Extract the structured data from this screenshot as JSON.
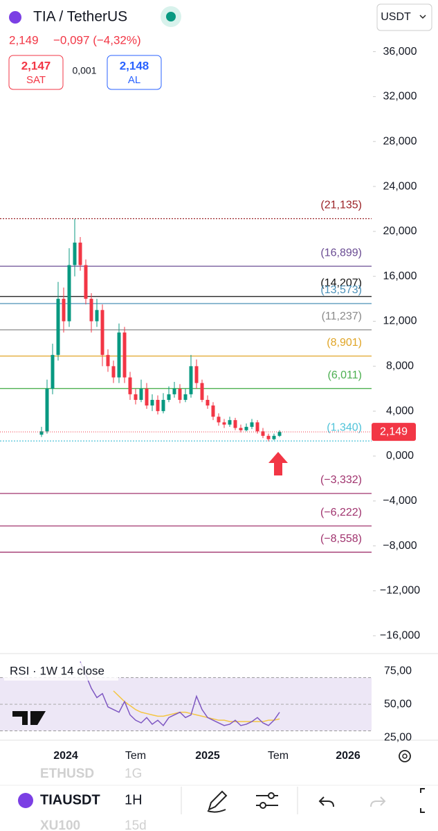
{
  "header": {
    "symbol": "TIA / TetherUS",
    "price": "2,149",
    "change": "−0,097 (−4,32%)",
    "sell": {
      "price": "2,147",
      "label": "SAT"
    },
    "spread": "0,001",
    "buy": {
      "price": "2,148",
      "label": "AL"
    },
    "currency": "USDT"
  },
  "price_chart": {
    "type": "candlestick",
    "up_color": "#089981",
    "down_color": "#f23645",
    "open": [
      1.9,
      2.2,
      6,
      9,
      14,
      12,
      17,
      19,
      17,
      14,
      12,
      13,
      9,
      8,
      7,
      11,
      7,
      5.5,
      5,
      6,
      4.5,
      5,
      4,
      5,
      5.5,
      6,
      5,
      5.5,
      8,
      6.5,
      5,
      4.5,
      3.5,
      3,
      2.8,
      3.2,
      2.5,
      2.3,
      2.6,
      3,
      2.2,
      1.8,
      1.5,
      1.8
    ],
    "high": [
      2.6,
      6.8,
      10,
      15.5,
      15,
      18.5,
      21.1,
      19.5,
      17.5,
      14.5,
      14,
      13.5,
      9.5,
      8.5,
      11.8,
      11.5,
      7.5,
      6,
      6.8,
      6.5,
      5.5,
      5.4,
      5.6,
      6.2,
      6.6,
      6.4,
      6,
      9,
      8.6,
      6.8,
      5.4,
      4.8,
      3.8,
      3.3,
      3.5,
      3.4,
      2.8,
      2.9,
      3.3,
      3.2,
      2.5,
      2,
      2,
      2.3
    ],
    "low": [
      1.7,
      2,
      5.5,
      8.5,
      11,
      11.5,
      16,
      16.5,
      13.5,
      11,
      11.5,
      8,
      7.5,
      6.5,
      6.5,
      6.5,
      5,
      4.6,
      4.8,
      4.2,
      4,
      3.7,
      3.8,
      4.8,
      5.2,
      4.7,
      4.8,
      5.2,
      6,
      4.8,
      4.2,
      3.2,
      2.7,
      2.5,
      2.6,
      2.3,
      2.1,
      2.2,
      2.4,
      2,
      1.6,
      1.3,
      1.4,
      1.7
    ],
    "close": [
      2.2,
      6,
      9,
      14,
      12,
      17,
      19,
      17,
      14,
      12,
      13,
      9,
      8,
      7,
      11,
      7,
      5.5,
      5,
      6,
      4.5,
      5,
      4,
      5,
      5.5,
      6,
      5,
      5.5,
      8,
      6.5,
      5,
      4.5,
      3.5,
      3,
      2.8,
      3.2,
      2.5,
      2.3,
      2.6,
      3,
      2.2,
      1.8,
      1.5,
      1.8,
      2.149
    ],
    "ylim": [
      -17.4,
      40.6
    ],
    "yticks": [
      {
        "value": 36,
        "label": "36,000"
      },
      {
        "value": 32,
        "label": "32,000"
      },
      {
        "value": 28,
        "label": "28,000"
      },
      {
        "value": 24,
        "label": "24,000"
      },
      {
        "value": 20,
        "label": "20,000"
      },
      {
        "value": 16,
        "label": "16,000"
      },
      {
        "value": 12,
        "label": "12,000"
      },
      {
        "value": 8,
        "label": "8,000"
      },
      {
        "value": 4,
        "label": "4,000"
      },
      {
        "value": 0,
        "label": "0,000"
      },
      {
        "value": -4,
        "label": "−4,000"
      },
      {
        "value": -8,
        "label": "−8,000"
      },
      {
        "value": -12,
        "label": "−12,000"
      },
      {
        "value": -16,
        "label": "−16,000"
      }
    ],
    "levels": [
      {
        "value": 21.135,
        "label": "(21,135)",
        "color": "#9b2226"
      },
      {
        "value": 16.899,
        "label": "(16,899)",
        "color": "#6a4c93"
      },
      {
        "value": 14.207,
        "label": "(14,207)",
        "color": "#111111"
      },
      {
        "value": 13.573,
        "label": "(13,573)",
        "color": "#4a90b8"
      },
      {
        "value": 11.237,
        "label": "(11,237)",
        "color": "#8a8a8a"
      },
      {
        "value": 8.901,
        "label": "(8,901)",
        "color": "#e0a526"
      },
      {
        "value": 6.011,
        "label": "(6,011)",
        "color": "#4caf50"
      },
      {
        "value": 1.34,
        "label": "(1,340)",
        "color": "#4fc3d9"
      },
      {
        "value": -3.332,
        "label": "(−3,332)",
        "color": "#a0336e"
      },
      {
        "value": -6.222,
        "label": "(−6,222)",
        "color": "#a0336e"
      },
      {
        "value": -8.558,
        "label": "(−8,558)",
        "color": "#a0336e"
      }
    ],
    "last_price": {
      "value": 2.149,
      "label": "2,149"
    },
    "time_labels": [
      "2024",
      "Tem",
      "2025",
      "Tem",
      "2026"
    ]
  },
  "rsi": {
    "title": "RSI · 1W 14 close",
    "color": "#7e57c2",
    "ma_color": "#f4c542",
    "values": [
      null,
      null,
      null,
      null,
      null,
      null,
      null,
      82,
      72,
      62,
      55,
      58,
      48,
      46,
      44,
      52,
      42,
      38,
      36,
      40,
      35,
      38,
      34,
      40,
      42,
      44,
      40,
      42,
      56,
      46,
      40,
      38,
      36,
      34,
      35,
      38,
      34,
      35,
      37,
      40,
      36,
      34,
      38,
      44
    ],
    "ma": [
      null,
      null,
      null,
      null,
      null,
      null,
      null,
      null,
      null,
      null,
      null,
      null,
      null,
      60,
      56,
      52,
      49,
      46,
      44,
      43,
      42,
      41,
      41,
      42,
      43,
      44,
      44,
      43,
      42,
      41,
      40,
      39,
      38,
      38,
      37,
      37,
      37,
      37,
      37,
      37,
      37,
      38,
      38,
      39
    ],
    "ylim": [
      23,
      87
    ],
    "yticks": [
      {
        "value": 75,
        "label": "75,00"
      },
      {
        "value": 50,
        "label": "50,00"
      },
      {
        "value": 25,
        "label": "25,00"
      }
    ],
    "band": [
      30,
      70
    ]
  },
  "toolbar": {
    "symbol": "TIAUSDT",
    "interval": "1H",
    "prev_symbol": "ETHUSD",
    "prev_interval": "1G",
    "next_symbol": "XU100",
    "next_interval": "15d"
  }
}
